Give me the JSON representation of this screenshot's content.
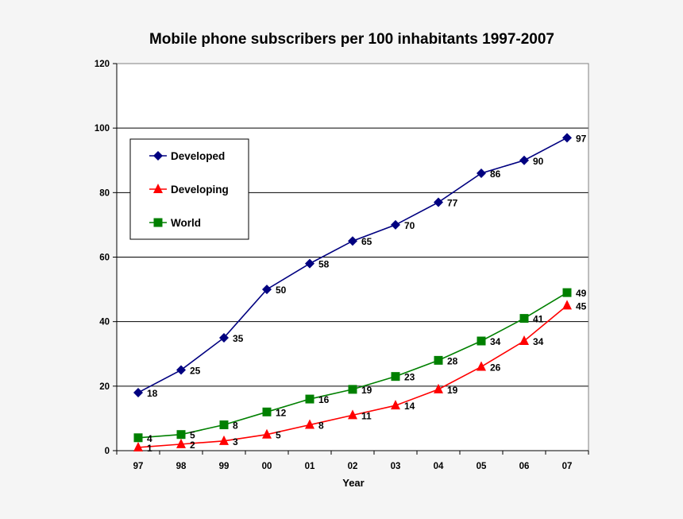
{
  "chart_data": {
    "type": "line",
    "title": "Mobile phone subscribers per 100 inhabitants 1997-2007",
    "xlabel": "Year",
    "ylabel": "",
    "categories": [
      "97",
      "98",
      "99",
      "00",
      "01",
      "02",
      "03",
      "04",
      "05",
      "06",
      "07"
    ],
    "ylim": [
      0,
      120
    ],
    "yticks": [
      0,
      20,
      40,
      60,
      80,
      100,
      120
    ],
    "grid": "horizontal",
    "legend_position": "upper-left",
    "series": [
      {
        "name": "Developed",
        "color": "#000080",
        "marker": "diamond",
        "values": [
          18,
          25,
          35,
          50,
          58,
          65,
          70,
          77,
          86,
          90,
          97
        ]
      },
      {
        "name": "Developing",
        "color": "#ff0000",
        "marker": "triangle",
        "values": [
          1,
          2,
          3,
          5,
          8,
          11,
          14,
          19,
          26,
          34,
          45
        ]
      },
      {
        "name": "World",
        "color": "#008000",
        "marker": "square",
        "values": [
          4,
          5,
          8,
          12,
          16,
          19,
          23,
          28,
          34,
          41,
          49
        ]
      }
    ]
  }
}
